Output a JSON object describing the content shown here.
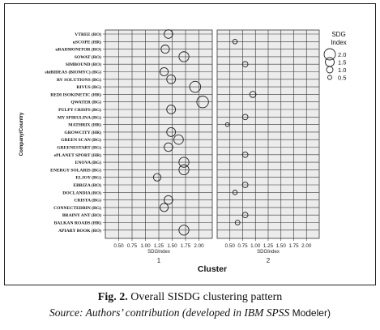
{
  "chart_data": {
    "type": "scatter",
    "ylabel": "Company/Country",
    "xlabel": "Cluster",
    "facet_xlabel": "SDGIndex",
    "xlim": [
      0.25,
      2.25
    ],
    "xticks": [
      "0.50",
      "0.75",
      "1.00",
      "1.25",
      "1.50",
      "1.75",
      "2.00"
    ],
    "grid": true,
    "legend_position": "top-right",
    "legend": {
      "title_line1": "SDG",
      "title_line2": "Index",
      "entries": [
        "2.0",
        "1.5",
        "1.0",
        "0.5"
      ],
      "sizes": [
        2.0,
        1.5,
        1.0,
        0.5
      ]
    },
    "companies": [
      "VTREE (RO)",
      "uSCOPE (HR)",
      "uRADMONITOR (RO)",
      "SOWAT (RO)",
      "SIMBOUND (RO)",
      "shiBIDEAS (BIOMYC) (BG)",
      "RV SOLUTIONS (BG)",
      "RIVUS (BG)",
      "REDI ISOKINETIC (HR)",
      "QWATER (BG)",
      "PULPY CRISPS (BG)",
      "MY SPIRULINA (BG)",
      "MATHRIX (HR)",
      "GROWCITY (HR)",
      "GREEN SCAN (BG)",
      "GREENESTART (BG)",
      "ePLANET SPORT (HR)",
      "ENOVA (BG)",
      "ENERGY SOLARIS (BG)",
      "ELJOY (BG)",
      "EBRIZA (RO)",
      "DOCLANDIA (RO)",
      "CRISTA (BG)",
      "CONNECTEDBIN (BG)",
      "BRAINY ANT (RO)",
      "BALKAN ROADS (HR)",
      "APIARY BOOK (RO)"
    ],
    "panels": [
      {
        "cluster": "1",
        "points": [
          {
            "company": "VTREE (RO)",
            "x": 1.43
          },
          {
            "company": "uRADMONITOR (RO)",
            "x": 1.37
          },
          {
            "company": "SOWAT (RO)",
            "x": 1.72
          },
          {
            "company": "shiBIDEAS (BIOMYC) (BG)",
            "x": 1.35
          },
          {
            "company": "RV SOLUTIONS (BG)",
            "x": 1.48
          },
          {
            "company": "RIVUS (BG)",
            "x": 1.93
          },
          {
            "company": "QWATER (BG)",
            "x": 2.07
          },
          {
            "company": "PULPY CRISPS (BG)",
            "x": 1.48
          },
          {
            "company": "GROWCITY (HR)",
            "x": 1.48
          },
          {
            "company": "GREEN SCAN (BG)",
            "x": 1.62
          },
          {
            "company": "GREENESTART (BG)",
            "x": 1.43
          },
          {
            "company": "ENOVA (BG)",
            "x": 1.72
          },
          {
            "company": "ENERGY SOLARIS (BG)",
            "x": 1.72
          },
          {
            "company": "ELJOY (BG)",
            "x": 1.22
          },
          {
            "company": "CRISTA (BG)",
            "x": 1.43
          },
          {
            "company": "CONNECTEDBIN (BG)",
            "x": 1.35
          },
          {
            "company": "APIARY BOOK (RO)",
            "x": 1.72
          }
        ]
      },
      {
        "cluster": "2",
        "points": [
          {
            "company": "uSCOPE (HR)",
            "x": 0.6
          },
          {
            "company": "SIMBOUND (RO)",
            "x": 0.8
          },
          {
            "company": "REDI ISOKINETIC (HR)",
            "x": 0.95
          },
          {
            "company": "MY SPIRULINA (BG)",
            "x": 0.8
          },
          {
            "company": "MATHRIX (HR)",
            "x": 0.45
          },
          {
            "company": "ePLANET SPORT (HR)",
            "x": 0.8
          },
          {
            "company": "EBRIZA (RO)",
            "x": 0.8
          },
          {
            "company": "DOCLANDIA (RO)",
            "x": 0.6
          },
          {
            "company": "BRAINY ANT (RO)",
            "x": 0.8
          },
          {
            "company": "BALKAN ROADS (HR)",
            "x": 0.65
          }
        ]
      }
    ]
  },
  "caption": {
    "fig_label": "Fig. 2.",
    "fig_title": " Overall SISDG clustering pattern",
    "source_italic": "Source: Authors’ contribution (developed in IBM SPSS",
    "source_upright": " Modeler)"
  }
}
